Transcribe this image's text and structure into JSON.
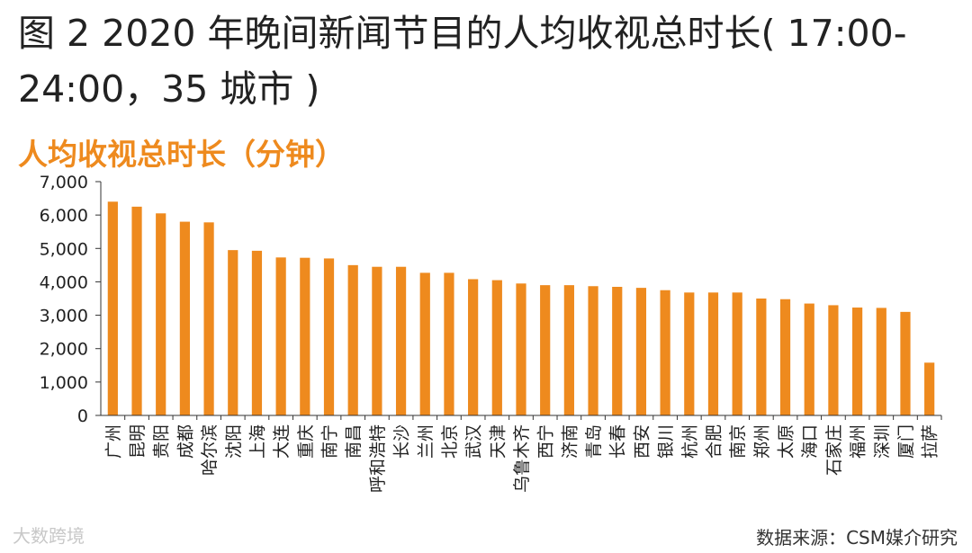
{
  "title": "图 2 2020 年晚间新闻节目的人均收视总时长( 17:00-24:00，35 城市 )",
  "watermark": "大数跨境",
  "source": "数据来源：CSM媒介研究",
  "colors": {
    "bar": "#ee8a1e",
    "subtitle": "#ee8a1e",
    "axis": "#333333"
  },
  "chart_data": {
    "type": "bar",
    "title": "人均收视总时长（分钟）",
    "ylim": [
      0,
      7000
    ],
    "yticks": [
      "7,000",
      "6,000",
      "5,000",
      "4,000",
      "3,000",
      "2,000",
      "1,000",
      "0"
    ],
    "grid": false,
    "categories": [
      "广州",
      "昆明",
      "贵阳",
      "成都",
      "哈尔滨",
      "沈阳",
      "上海",
      "大连",
      "重庆",
      "南宁",
      "南昌",
      "呼和浩特",
      "长沙",
      "兰州",
      "北京",
      "武汉",
      "天津",
      "乌鲁木齐",
      "西宁",
      "济南",
      "青岛",
      "长春",
      "西安",
      "银川",
      "杭州",
      "合肥",
      "南京",
      "郑州",
      "太原",
      "海口",
      "石家庄",
      "福州",
      "深圳",
      "厦门",
      "拉萨"
    ],
    "values": [
      6400,
      6250,
      6050,
      5800,
      5780,
      4950,
      4930,
      4730,
      4720,
      4700,
      4500,
      4450,
      4450,
      4270,
      4270,
      4080,
      4050,
      3950,
      3900,
      3900,
      3870,
      3850,
      3820,
      3750,
      3680,
      3680,
      3680,
      3500,
      3480,
      3350,
      3300,
      3230,
      3220,
      3100,
      1580
    ]
  }
}
